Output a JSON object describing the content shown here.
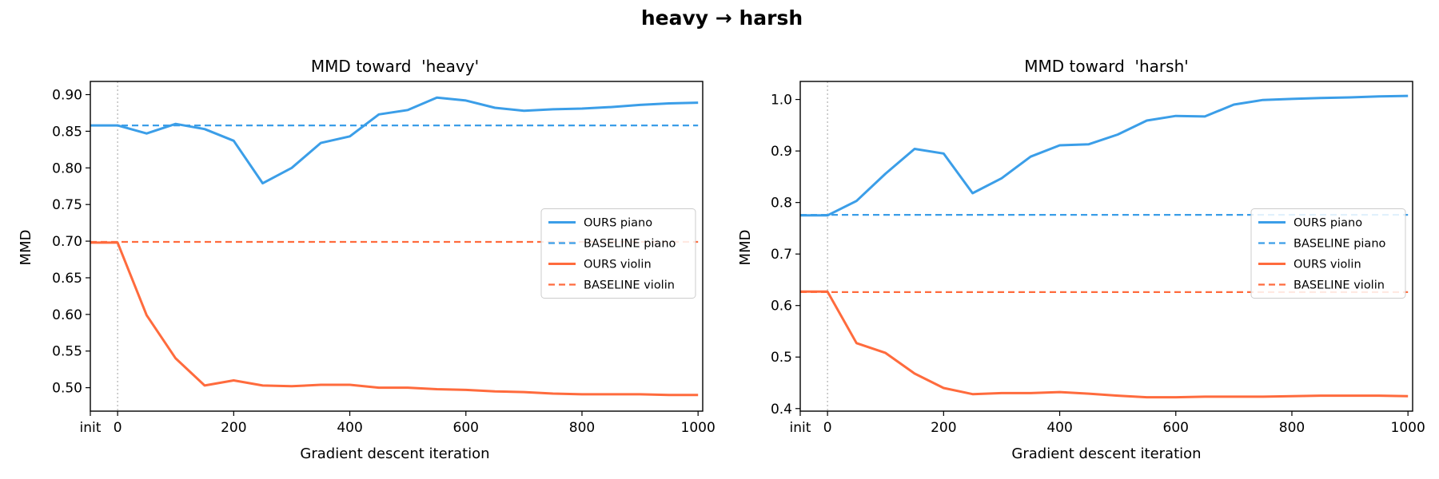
{
  "figure": {
    "title": "heavy → harsh"
  },
  "colors": {
    "piano": "#3b9ee8",
    "violin": "#ff6b3d"
  },
  "chart_data": [
    {
      "type": "line",
      "title": "MMD toward  'heavy'",
      "xlabel": "Gradient descent iteration",
      "ylabel": "MMD",
      "xlim": [
        -47,
        1008
      ],
      "ylim": [
        0.468,
        0.918
      ],
      "x_ticks": [
        {
          "label": "init",
          "value": -47
        },
        {
          "label": "0",
          "value": 0
        },
        {
          "label": "200",
          "value": 200
        },
        {
          "label": "400",
          "value": 400
        },
        {
          "label": "600",
          "value": 600
        },
        {
          "label": "800",
          "value": 800
        },
        {
          "label": "1000",
          "value": 1000
        }
      ],
      "y_ticks": [
        0.9,
        0.85,
        0.8,
        0.75,
        0.7,
        0.65,
        0.6,
        0.55,
        0.5
      ],
      "y_tick_labels": [
        "0.90",
        "0.85",
        "0.80",
        "0.75",
        "0.70",
        "0.65",
        "0.60",
        "0.55",
        "0.50"
      ],
      "grid": false,
      "legend_position": "center-right",
      "series": [
        {
          "name": "OURS piano",
          "style": "solid",
          "color_key": "piano",
          "x": [
            "init",
            0,
            50,
            100,
            150,
            200,
            250,
            300,
            350,
            400,
            450,
            500,
            550,
            600,
            650,
            700,
            750,
            800,
            850,
            900,
            950,
            1000
          ],
          "values": [
            0.858,
            0.858,
            0.847,
            0.86,
            0.853,
            0.837,
            0.779,
            0.8,
            0.834,
            0.843,
            0.873,
            0.879,
            0.896,
            0.892,
            0.882,
            0.878,
            0.88,
            0.881,
            0.883,
            0.886,
            0.888,
            0.889
          ]
        },
        {
          "name": "BASELINE piano",
          "style": "dashed",
          "color_key": "piano",
          "x": [
            "init",
            1000
          ],
          "values": [
            0.858,
            0.858
          ]
        },
        {
          "name": "OURS violin",
          "style": "solid",
          "color_key": "violin",
          "x": [
            "init",
            0,
            50,
            100,
            150,
            200,
            250,
            300,
            350,
            400,
            450,
            500,
            550,
            600,
            650,
            700,
            750,
            800,
            850,
            900,
            950,
            1000
          ],
          "values": [
            0.698,
            0.698,
            0.599,
            0.54,
            0.503,
            0.51,
            0.503,
            0.502,
            0.504,
            0.504,
            0.5,
            0.5,
            0.498,
            0.497,
            0.495,
            0.494,
            0.492,
            0.491,
            0.491,
            0.491,
            0.49,
            0.49
          ]
        },
        {
          "name": "BASELINE violin",
          "style": "dashed",
          "color_key": "violin",
          "x": [
            "init",
            1000
          ],
          "values": [
            0.699,
            0.699
          ]
        }
      ]
    },
    {
      "type": "line",
      "title": "MMD toward  'harsh'",
      "xlabel": "Gradient descent iteration",
      "ylabel": "MMD",
      "xlim": [
        -47,
        1008
      ],
      "ylim": [
        0.395,
        1.035
      ],
      "x_ticks": [
        {
          "label": "init",
          "value": -47
        },
        {
          "label": "0",
          "value": 0
        },
        {
          "label": "200",
          "value": 200
        },
        {
          "label": "400",
          "value": 400
        },
        {
          "label": "600",
          "value": 600
        },
        {
          "label": "800",
          "value": 800
        },
        {
          "label": "1000",
          "value": 1000
        }
      ],
      "y_ticks": [
        1.0,
        0.9,
        0.8,
        0.7,
        0.6,
        0.5,
        0.4
      ],
      "y_tick_labels": [
        "1.0",
        "0.9",
        "0.8",
        "0.7",
        "0.6",
        "0.5",
        "0.4"
      ],
      "grid": false,
      "legend_position": "center-right",
      "series": [
        {
          "name": "OURS piano",
          "style": "solid",
          "color_key": "piano",
          "x": [
            "init",
            0,
            50,
            100,
            150,
            200,
            250,
            300,
            350,
            400,
            450,
            500,
            550,
            600,
            650,
            700,
            750,
            800,
            850,
            900,
            950,
            1000
          ],
          "values": [
            0.775,
            0.775,
            0.803,
            0.856,
            0.904,
            0.895,
            0.818,
            0.847,
            0.889,
            0.911,
            0.913,
            0.932,
            0.959,
            0.968,
            0.967,
            0.99,
            0.999,
            1.001,
            1.003,
            1.004,
            1.006,
            1.007
          ]
        },
        {
          "name": "BASELINE piano",
          "style": "dashed",
          "color_key": "piano",
          "x": [
            "init",
            1000
          ],
          "values": [
            0.776,
            0.776
          ]
        },
        {
          "name": "OURS violin",
          "style": "solid",
          "color_key": "violin",
          "x": [
            "init",
            0,
            50,
            100,
            150,
            200,
            250,
            300,
            350,
            400,
            450,
            500,
            550,
            600,
            650,
            700,
            750,
            800,
            850,
            900,
            950,
            1000
          ],
          "values": [
            0.627,
            0.627,
            0.527,
            0.508,
            0.468,
            0.44,
            0.428,
            0.43,
            0.43,
            0.432,
            0.429,
            0.425,
            0.422,
            0.422,
            0.423,
            0.423,
            0.423,
            0.424,
            0.425,
            0.425,
            0.425,
            0.424
          ]
        },
        {
          "name": "BASELINE violin",
          "style": "dashed",
          "color_key": "violin",
          "x": [
            "init",
            1000
          ],
          "values": [
            0.626,
            0.626
          ]
        }
      ]
    }
  ]
}
